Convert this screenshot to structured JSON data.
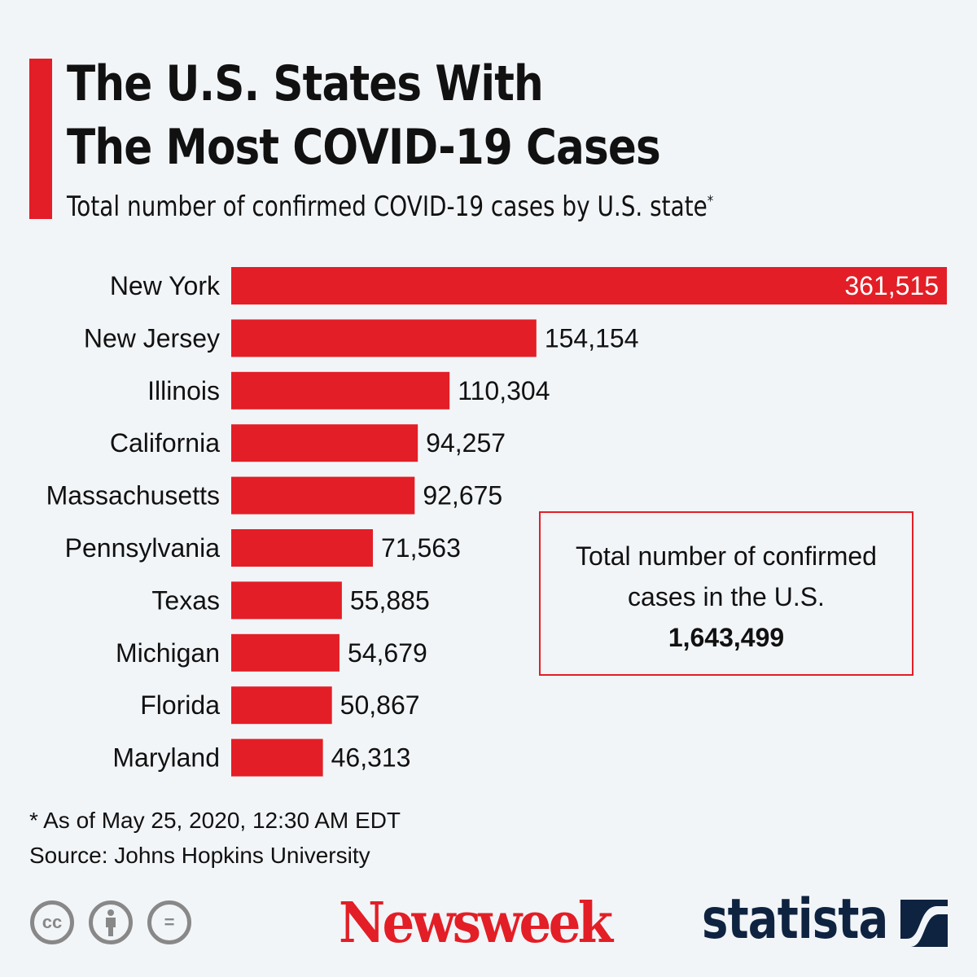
{
  "header": {
    "title_line1": "The U.S. States With",
    "title_line2": "The Most COVID-19 Cases",
    "subtitle": "Total number of confirmed COVID-19 cases by U.S. state",
    "subtitle_mark": "*"
  },
  "chart_data": {
    "type": "bar",
    "orientation": "horizontal",
    "categories": [
      "New York",
      "New Jersey",
      "Illinois",
      "California",
      "Massachusetts",
      "Pennsylvania",
      "Texas",
      "Michigan",
      "Florida",
      "Maryland"
    ],
    "values": [
      361515,
      154154,
      110304,
      94257,
      92675,
      71563,
      55885,
      54679,
      50867,
      46313
    ],
    "value_labels": [
      "361,515",
      "154,154",
      "110,304",
      "94,257",
      "92,675",
      "71,563",
      "55,885",
      "54,679",
      "50,867",
      "46,313"
    ],
    "bar_color": "#e31e26",
    "grid": false
  },
  "callout": {
    "text_line1": "Total number of confirmed",
    "text_line2": "cases in the U.S.",
    "value": "1,643,499"
  },
  "footer": {
    "note": "* As of May 25, 2020, 12:30 AM EDT",
    "source": "Source: Johns Hopkins University"
  },
  "logos": {
    "newsweek": "Newsweek",
    "statista": "statista",
    "license_icons": [
      "cc-icon",
      "by-icon",
      "nd-icon"
    ],
    "cc_text": "cc",
    "nd_text": "="
  }
}
